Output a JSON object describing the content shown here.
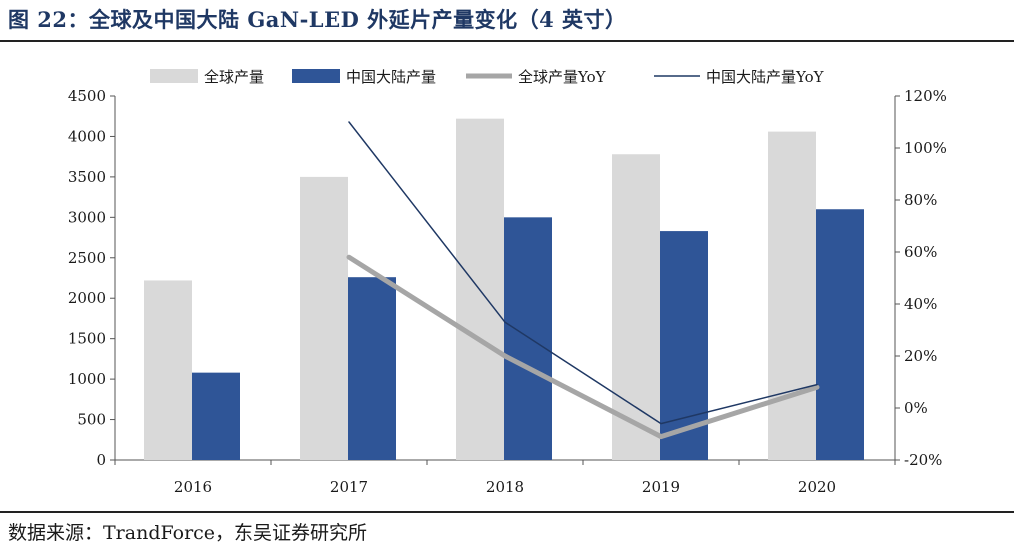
{
  "header": {
    "title": "图 22：全球及中国大陆 GaN-LED 外延片产量变化（4 英寸）"
  },
  "footer": {
    "source": "数据来源：TrandForce，东吴证券研究所"
  },
  "colors": {
    "global_bar": "#d9d9d9",
    "china_bar": "#2f5597",
    "global_line": "#a6a6a6",
    "china_line": "#1f3864"
  },
  "chart_data": {
    "type": "bar",
    "categories": [
      "2016",
      "2017",
      "2018",
      "2019",
      "2020"
    ],
    "series": [
      {
        "name": "全球产量",
        "type": "bar",
        "axis": "left",
        "values": [
          2220,
          3500,
          4220,
          3780,
          4060
        ]
      },
      {
        "name": "中国大陆产量",
        "type": "bar",
        "axis": "left",
        "values": [
          1080,
          2260,
          3000,
          2830,
          3100
        ]
      },
      {
        "name": "全球产量YoY",
        "type": "line",
        "axis": "right",
        "values": [
          null,
          58,
          20,
          -11,
          8
        ]
      },
      {
        "name": "中国大陆产量YoY",
        "type": "line",
        "axis": "right",
        "values": [
          null,
          110,
          33,
          -6,
          9
        ]
      }
    ],
    "left_axis": {
      "ylim": [
        0,
        4500
      ],
      "ticks": [
        "0",
        "500",
        "1000",
        "1500",
        "2000",
        "2500",
        "3000",
        "3500",
        "4000",
        "4500"
      ]
    },
    "right_axis": {
      "ylim": [
        -20,
        120
      ],
      "ticks": [
        "-20%",
        "0%",
        "20%",
        "40%",
        "60%",
        "80%",
        "100%",
        "120%"
      ]
    },
    "legend_position": "top",
    "grid": false
  }
}
